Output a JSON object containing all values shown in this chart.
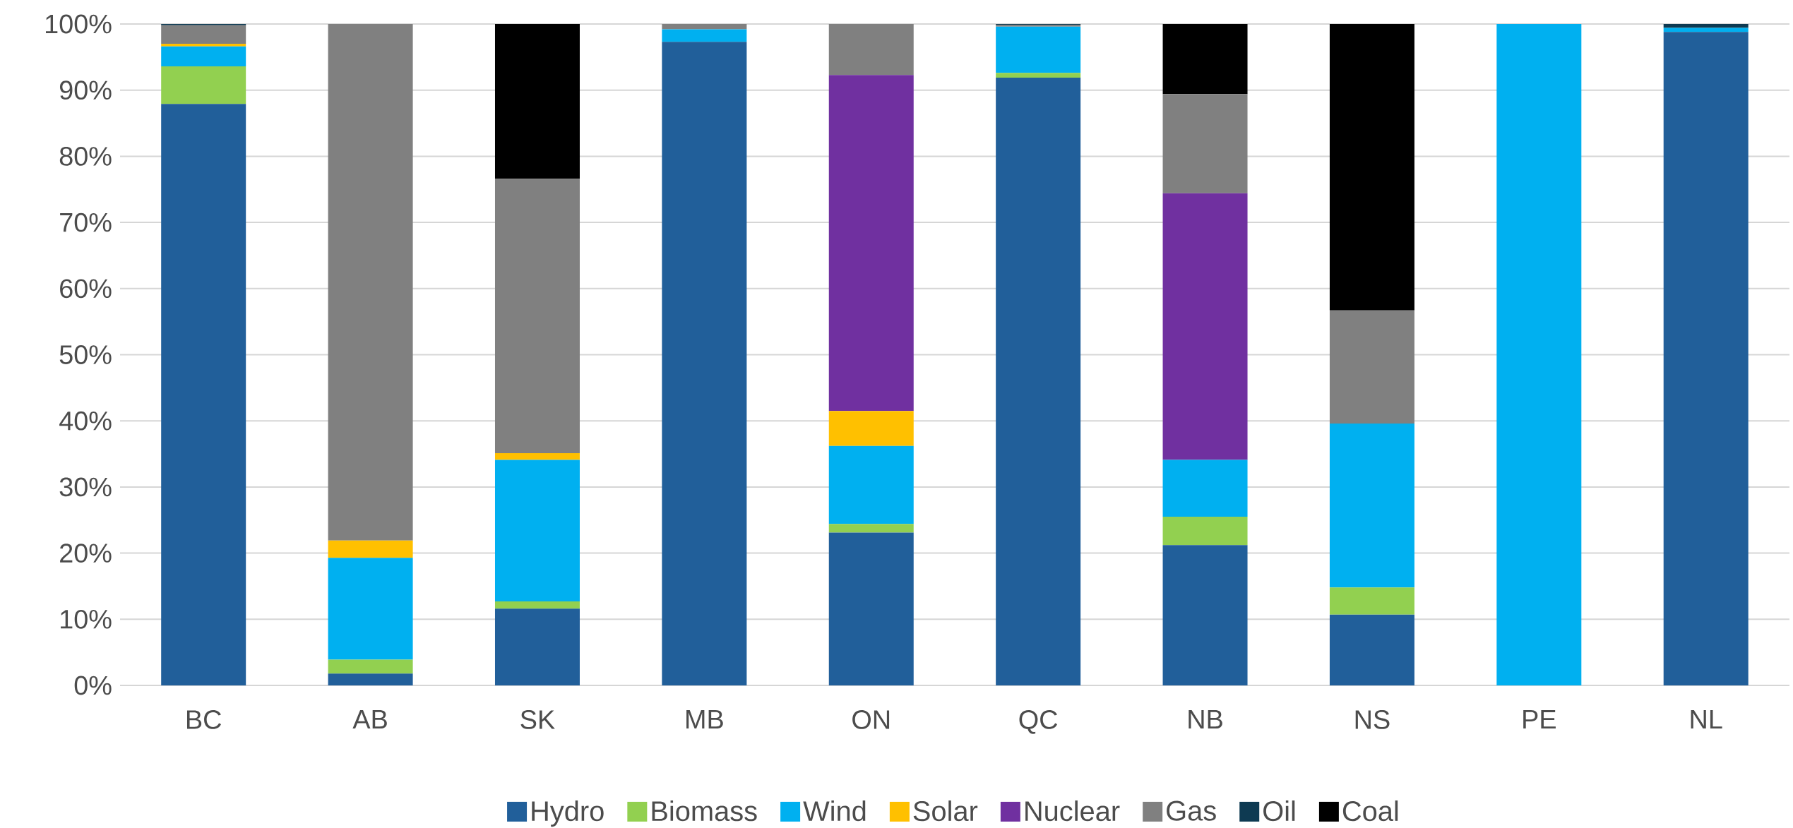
{
  "chart_data": {
    "type": "bar",
    "stacked": true,
    "categories": [
      "BC",
      "AB",
      "SK",
      "MB",
      "ON",
      "QC",
      "NB",
      "NS",
      "PE",
      "NL"
    ],
    "series": [
      {
        "name": "Hydro",
        "color": "#215f9a",
        "values": [
          87.9,
          1.8,
          11.6,
          97.3,
          23.1,
          91.9,
          21.2,
          10.7,
          0,
          98.8
        ]
      },
      {
        "name": "Biomass",
        "color": "#92d050",
        "values": [
          5.7,
          2.1,
          1.1,
          0,
          1.3,
          0.7,
          4.3,
          4.1,
          0,
          0
        ]
      },
      {
        "name": "Wind",
        "color": "#00b0f0",
        "values": [
          3.0,
          15.4,
          21.4,
          1.9,
          11.8,
          7.0,
          8.6,
          24.8,
          100,
          0.6
        ]
      },
      {
        "name": "Solar",
        "color": "#ffc000",
        "values": [
          0.4,
          2.6,
          1.0,
          0,
          5.3,
          0,
          0,
          0,
          0,
          0
        ]
      },
      {
        "name": "Nuclear",
        "color": "#7030a0",
        "values": [
          0,
          0,
          0,
          0,
          50.8,
          0,
          40.3,
          0,
          0,
          0
        ]
      },
      {
        "name": "Gas",
        "color": "#808080",
        "values": [
          2.8,
          78.1,
          41.5,
          0.8,
          7.7,
          0.3,
          15.0,
          17.1,
          0,
          0
        ]
      },
      {
        "name": "Oil",
        "color": "#0e3a52",
        "values": [
          0.2,
          0,
          0,
          0,
          0,
          0.1,
          0,
          0,
          0,
          0.6
        ]
      },
      {
        "name": "Coal",
        "color": "#000000",
        "values": [
          0,
          0,
          23.4,
          0,
          0,
          0,
          10.6,
          43.3,
          0,
          0
        ]
      }
    ],
    "ylim": [
      0,
      100
    ],
    "yticks": [
      {
        "value": 0,
        "label": "0%"
      },
      {
        "value": 10,
        "label": "10%"
      },
      {
        "value": 20,
        "label": "20%"
      },
      {
        "value": 30,
        "label": "30%"
      },
      {
        "value": 40,
        "label": "40%"
      },
      {
        "value": 50,
        "label": "50%"
      },
      {
        "value": 60,
        "label": "60%"
      },
      {
        "value": 70,
        "label": "70%"
      },
      {
        "value": 80,
        "label": "80%"
      },
      {
        "value": 90,
        "label": "90%"
      },
      {
        "value": 100,
        "label": "100%"
      }
    ],
    "grid": "y",
    "legend": "bottom"
  }
}
